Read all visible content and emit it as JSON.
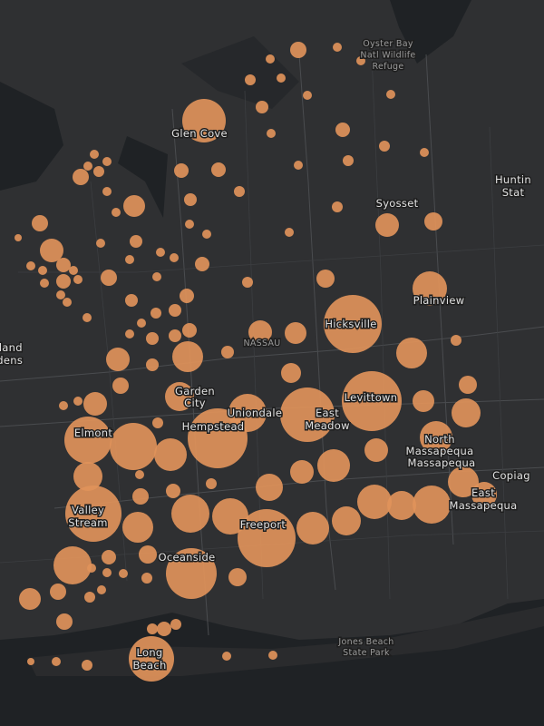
{
  "labels": [
    {
      "lines": [
        "Oyster Bay",
        "Natl Wildlife",
        "Refuge"
      ]
    },
    {
      "lines": [
        "Glen Cove"
      ]
    },
    {
      "lines": [
        "Syosset"
      ]
    },
    {
      "lines": [
        "Huntin",
        "Stat"
      ]
    },
    {
      "lines": [
        "Plainview"
      ]
    },
    {
      "lines": [
        "Hicksville"
      ]
    },
    {
      "lines": [
        "NASSAU"
      ]
    },
    {
      "lines": [
        "Oakland",
        "Gardens"
      ]
    },
    {
      "lines": [
        "Garden",
        "City"
      ]
    },
    {
      "lines": [
        "Uniondale"
      ]
    },
    {
      "lines": [
        "Levittown"
      ]
    },
    {
      "lines": [
        "East",
        "Meadow"
      ]
    },
    {
      "lines": [
        "Hempstead"
      ]
    },
    {
      "lines": [
        "Elmont"
      ]
    },
    {
      "lines": [
        "North",
        "Massapequa"
      ]
    },
    {
      "lines": [
        "Massapequa"
      ]
    },
    {
      "lines": [
        "Copiag"
      ]
    },
    {
      "lines": [
        "East",
        "Massapequa"
      ]
    },
    {
      "lines": [
        "Valley",
        "Stream"
      ]
    },
    {
      "lines": [
        "Freeport"
      ]
    },
    {
      "lines": [
        "Oceanside"
      ]
    },
    {
      "lines": [
        "Long",
        "Beach"
      ]
    },
    {
      "lines": [
        "Jones Beach",
        "State Park"
      ]
    }
  ],
  "circles": {
    "values": [
      576,
      81,
      25,
      25,
      25,
      36,
      25,
      25,
      49,
      25,
      64,
      25,
      36,
      36,
      25,
      25,
      64,
      64,
      49,
      36,
      144,
      25,
      25,
      81,
      36,
      25,
      25,
      81,
      25,
      25,
      25,
      49,
      25,
      169,
      16,
      36,
      169,
      100,
      25,
      25,
      25,
      64,
      25,
      25,
      25,
      64,
      25,
      25,
      64,
      25,
      81,
      25,
      36,
      100,
      361,
      25,
      25,
      49,
      64,
      36,
      49,
      25,
      25,
      64,
      169,
      144,
      1024,
      25,
      49,
      49,
      36,
      169,
      289,
      49,
      289,
      49,
      121,
      81,
      25,
      25,
      169,
      256,
      100,
      144,
      441,
      900,
      1089,
      256,
      676,
      676,
      324,
      1089,
      36,
      324,
      169,
      169,
      324,
      256,
      25,
      225,
      64,
      36,
      289,
      196,
      81,
      961,
      441,
      400,
      361,
      256,
      441,
      256,
      324,
      289,
      1024,
      441,
      64,
      100,
      784,
      25,
      25,
      25,
      36,
      100,
      81,
      144,
      36,
      25,
      81,
      36,
      64,
      36,
      625,
      25,
      25,
      16,
      25,
      36
    ]
  }
}
